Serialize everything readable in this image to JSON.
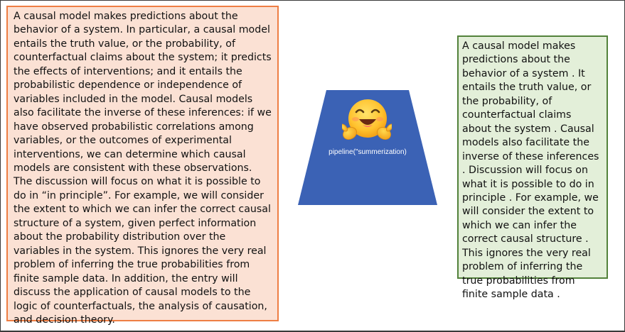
{
  "input_text": "A causal model makes predictions about the behavior of a system. In particular, a causal model entails the truth value, or the probability, of counterfactual claims about the system; it predicts the effects of interventions; and it entails the probabilistic dependence or independence of variables included in the model. Causal models also facilitate the inverse of these inferences: if we have observed probabilistic correlations among variables, or the outcomes of experimental interventions, we can determine which causal models are consistent with these observations. The discussion will focus on what it is possible to do in “in principle”. For example, we will consider the extent to which we can infer the correct causal structure of a system, given perfect information about the probability distribution over the variables in the system. This ignores the very real problem of inferring the true probabilities from finite sample data. In addition, the entry will discuss the application of causal models to the logic of counterfactuals, the analysis of causation, and decision theory.",
  "pipeline_label": "pipeline(\"summerization)",
  "pipeline_icon": "hugging-face-emoji-icon",
  "output_text": "A causal model makes predictions about the behavior of a system . It entails the truth value, or the probability, of counterfactual claims about the system . Causal models also facilitate the inverse of these inferences . Discussion will focus on what it is possible to do in principle . For example, we will consider the extent to which we can infer the correct causal structure . This ignores the very real problem of inferring the true probabilities from finite sample data .",
  "colors": {
    "input_fill": "#fbe1d4",
    "input_border": "#ee7e44",
    "pipeline_fill": "#3b62b5",
    "output_fill": "#e3efd9",
    "output_border": "#53823b"
  }
}
